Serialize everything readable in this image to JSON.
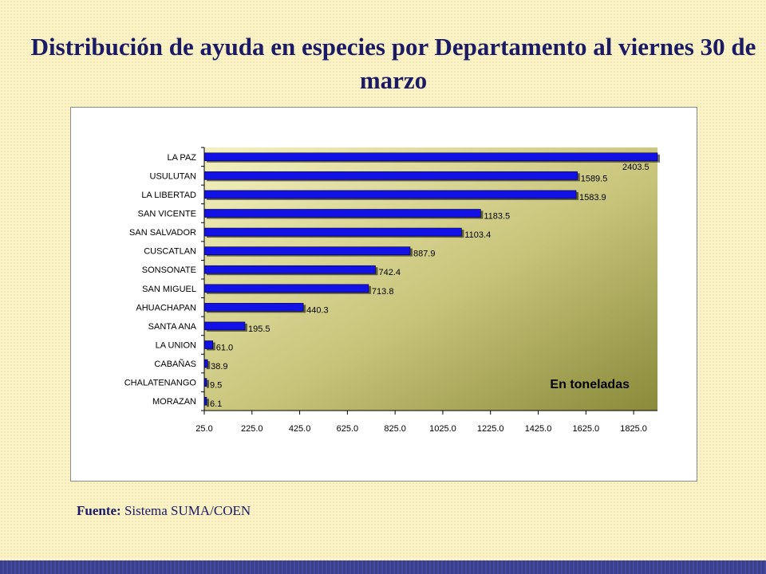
{
  "title": "Distribución de ayuda en especies por Departamento al viernes 30 de marzo",
  "source": {
    "label": "Fuente:",
    "text": "Sistema SUMA/COEN"
  },
  "colors": {
    "bar": "#1212e6",
    "plot_bg_light": "#f4f1c0",
    "plot_bg_dark": "#8a8a3a",
    "title": "#1a1a66",
    "page_bg": "#fbf3c6"
  },
  "chart_data": {
    "type": "bar",
    "orientation": "horizontal",
    "unit_note": "En toneladas",
    "categories": [
      "LA PAZ",
      "USULUTAN",
      "LA LIBERTAD",
      "SAN VICENTE",
      "SAN SALVADOR",
      "CUSCATLAN",
      "SONSONATE",
      "SAN MIGUEL",
      "AHUACHAPAN",
      "SANTA ANA",
      "LA UNION",
      "CABAÑAS",
      "CHALATENANGO",
      "MORAZAN"
    ],
    "values": [
      2403.5,
      1589.5,
      1583.9,
      1183.5,
      1103.4,
      887.9,
      742.4,
      713.8,
      440.3,
      195.5,
      61.0,
      38.9,
      9.5,
      6.1
    ],
    "value_labels": [
      "2403.5",
      "1589.5",
      "1583.9",
      "1183.5",
      "1103.4",
      "887.9",
      "742.4",
      "713.8",
      "440.3",
      "195.5",
      "61.0",
      "38.9",
      "9.5",
      "6.1"
    ],
    "x_ticks": [
      25.0,
      225.0,
      425.0,
      625.0,
      825.0,
      1025.0,
      1225.0,
      1425.0,
      1625.0,
      1825.0
    ],
    "x_tick_labels": [
      "25.0",
      "225.0",
      "425.0",
      "625.0",
      "825.0",
      "1025.0",
      "1225.0",
      "1425.0",
      "1625.0",
      "1825.0"
    ],
    "xlim": [
      25.0,
      1925.0
    ],
    "xlabel": "",
    "ylabel": "",
    "grid": false,
    "legend": "none"
  }
}
